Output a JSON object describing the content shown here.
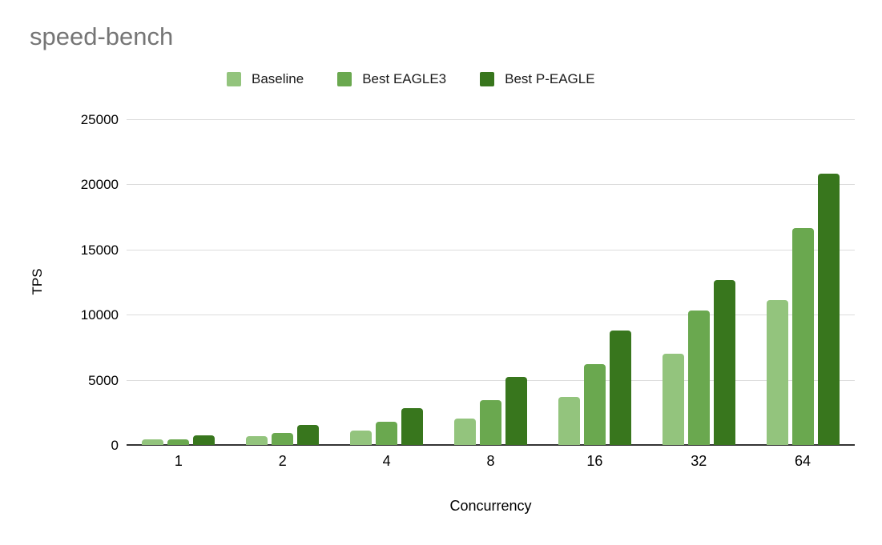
{
  "title": "speed-bench",
  "colors": {
    "title_gray": "#757575",
    "baseline_green": "#93c47d",
    "eagle3_green": "#6aa84f",
    "peagle_green": "#38761d",
    "gridline": "#dcdcdc",
    "axis_line": "#333333",
    "text": "#000000"
  },
  "chart_data": {
    "type": "bar",
    "title": "speed-bench",
    "xlabel": "Concurrency",
    "ylabel": "TPS",
    "categories": [
      "1",
      "2",
      "4",
      "8",
      "16",
      "32",
      "64"
    ],
    "series": [
      {
        "name": "Baseline",
        "color": "#93c47d",
        "values": [
          420,
          690,
          1100,
          2000,
          3700,
          7000,
          11100
        ]
      },
      {
        "name": "Best EAGLE3",
        "color": "#6aa84f",
        "values": [
          460,
          920,
          1760,
          3450,
          6200,
          10350,
          16650
        ]
      },
      {
        "name": "Best P-EAGLE",
        "color": "#38761d",
        "values": [
          750,
          1540,
          2800,
          5200,
          8800,
          12650,
          20800
        ]
      }
    ],
    "ylim": [
      0,
      25000
    ],
    "yticks": [
      0,
      5000,
      10000,
      15000,
      20000,
      25000
    ],
    "grid": true,
    "legend_position": "top"
  }
}
